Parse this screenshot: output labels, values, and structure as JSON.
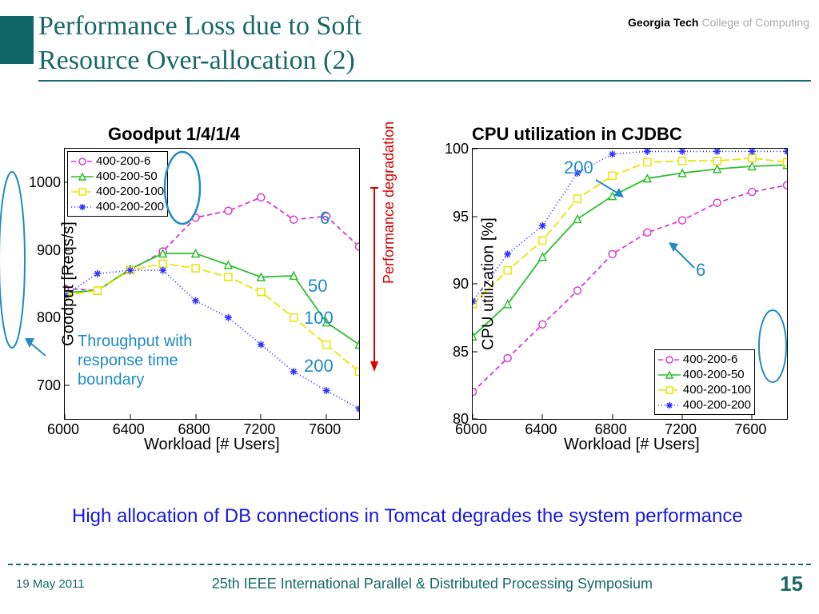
{
  "header": {
    "title_line1": "Performance Loss due to Soft",
    "title_line2": "Resource Over-allocation (2)",
    "logo_gtech": "Georgia Tech",
    "logo_college": "College of Computing"
  },
  "chart_left": {
    "title": "Goodput  1/4/1/4",
    "xlabel": "Workload [# Users]",
    "ylabel": "Goodput [Reqs/s]",
    "xlim": [
      6000,
      7800
    ],
    "ylim": [
      650,
      1050
    ],
    "xticks": [
      6000,
      6400,
      6800,
      7200,
      7600
    ],
    "yticks": [
      700,
      800,
      900,
      1000
    ],
    "series": [
      {
        "name": "400-200-6",
        "color": "#d63bd6",
        "dash": "6 4",
        "marker": "circle",
        "data": [
          [
            6000,
            843
          ],
          [
            6200,
            840
          ],
          [
            6400,
            870
          ],
          [
            6600,
            898
          ],
          [
            6800,
            948
          ],
          [
            7000,
            958
          ],
          [
            7200,
            978
          ],
          [
            7400,
            945
          ],
          [
            7600,
            950
          ],
          [
            7800,
            905
          ]
        ]
      },
      {
        "name": "400-200-50",
        "color": "#2cc02c",
        "dash": "",
        "marker": "triangle",
        "data": [
          [
            6000,
            837
          ],
          [
            6200,
            840
          ],
          [
            6400,
            872
          ],
          [
            6600,
            895
          ],
          [
            6800,
            895
          ],
          [
            7000,
            878
          ],
          [
            7200,
            860
          ],
          [
            7400,
            862
          ],
          [
            7600,
            793
          ],
          [
            7800,
            760
          ]
        ]
      },
      {
        "name": "400-200-100",
        "color": "#e6e600",
        "dash": "10 4",
        "marker": "square",
        "data": [
          [
            6000,
            833
          ],
          [
            6200,
            840
          ],
          [
            6400,
            870
          ],
          [
            6600,
            880
          ],
          [
            6800,
            873
          ],
          [
            7000,
            860
          ],
          [
            7200,
            838
          ],
          [
            7400,
            800
          ],
          [
            7600,
            760
          ],
          [
            7800,
            720
          ]
        ]
      },
      {
        "name": "400-200-200",
        "color": "#3030ff",
        "dash": "1 3",
        "marker": "star",
        "data": [
          [
            6000,
            833
          ],
          [
            6200,
            865
          ],
          [
            6400,
            870
          ],
          [
            6600,
            870
          ],
          [
            6800,
            825
          ],
          [
            7000,
            800
          ],
          [
            7200,
            760
          ],
          [
            7400,
            720
          ],
          [
            7600,
            692
          ],
          [
            7800,
            665
          ]
        ]
      }
    ],
    "anno_6": "6",
    "anno_50": "50",
    "anno_100": "100",
    "anno_200": "200",
    "throughput_note": "Throughput with response time boundary",
    "perf_deg": "Performance degradation"
  },
  "chart_right": {
    "title": "CPU utilization in CJDBC",
    "xlabel": "Workload [# Users]",
    "ylabel": "CPU utilization [%]",
    "xlim": [
      6000,
      7800
    ],
    "ylim": [
      80,
      100
    ],
    "xticks": [
      6000,
      6400,
      6800,
      7200,
      7600
    ],
    "yticks": [
      80,
      85,
      90,
      95,
      100
    ],
    "series": [
      {
        "name": "400-200-6",
        "color": "#d63bd6",
        "dash": "6 4",
        "marker": "circle",
        "data": [
          [
            6000,
            82
          ],
          [
            6200,
            84.5
          ],
          [
            6400,
            87
          ],
          [
            6600,
            89.5
          ],
          [
            6800,
            92.2
          ],
          [
            7000,
            93.8
          ],
          [
            7200,
            94.7
          ],
          [
            7400,
            96
          ],
          [
            7600,
            96.8
          ],
          [
            7800,
            97.3
          ]
        ]
      },
      {
        "name": "400-200-50",
        "color": "#2cc02c",
        "dash": "",
        "marker": "triangle",
        "data": [
          [
            6000,
            86.1
          ],
          [
            6200,
            88.5
          ],
          [
            6400,
            92
          ],
          [
            6600,
            94.8
          ],
          [
            6800,
            96.5
          ],
          [
            7000,
            97.8
          ],
          [
            7200,
            98.2
          ],
          [
            7400,
            98.5
          ],
          [
            7600,
            98.7
          ],
          [
            7800,
            98.8
          ]
        ]
      },
      {
        "name": "400-200-100",
        "color": "#e6e600",
        "dash": "10 4",
        "marker": "square",
        "data": [
          [
            6000,
            88.5
          ],
          [
            6200,
            91
          ],
          [
            6400,
            93.2
          ],
          [
            6600,
            96.3
          ],
          [
            6800,
            98
          ],
          [
            7000,
            99
          ],
          [
            7200,
            99.1
          ],
          [
            7400,
            99.1
          ],
          [
            7600,
            99.3
          ],
          [
            7800,
            99
          ]
        ]
      },
      {
        "name": "400-200-200",
        "color": "#3030ff",
        "dash": "1 3",
        "marker": "star",
        "data": [
          [
            6000,
            88.7
          ],
          [
            6200,
            92.2
          ],
          [
            6400,
            94.3
          ],
          [
            6600,
            98.2
          ],
          [
            6800,
            99.6
          ],
          [
            7000,
            99.8
          ],
          [
            7200,
            99.8
          ],
          [
            7400,
            99.8
          ],
          [
            7600,
            99.8
          ],
          [
            7800,
            99.8
          ]
        ]
      }
    ],
    "anno_200": "200",
    "anno_6": "6"
  },
  "bottom_note": "High allocation of DB connections in Tomcat degrades the system performance",
  "footer": {
    "date": "19 May 2011",
    "conference": "25th IEEE International Parallel & Distributed Processing Symposium",
    "page": "15"
  },
  "colors": {
    "teal": "#186868",
    "blue_anno": "#1f8bc4",
    "red": "#dd0000"
  }
}
